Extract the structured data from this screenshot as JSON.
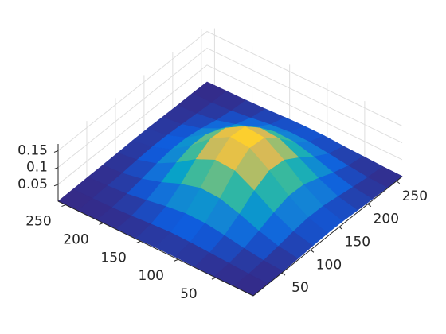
{
  "chart_data": {
    "type": "surface",
    "colormap": "parula",
    "grid": true,
    "x": [
      0,
      26,
      52,
      78,
      104,
      130,
      156,
      182,
      208,
      234,
      260
    ],
    "y": [
      0,
      26,
      52,
      78,
      104,
      130,
      156,
      182,
      208,
      234,
      260
    ],
    "z": [
      [
        0.0,
        0.001,
        0.002,
        0.004,
        0.007,
        0.009,
        0.009,
        0.006,
        0.004,
        0.002,
        0.001
      ],
      [
        0.001,
        0.002,
        0.006,
        0.013,
        0.021,
        0.027,
        0.026,
        0.019,
        0.011,
        0.005,
        0.002
      ],
      [
        0.001,
        0.005,
        0.014,
        0.03,
        0.049,
        0.063,
        0.061,
        0.045,
        0.026,
        0.011,
        0.004
      ],
      [
        0.002,
        0.008,
        0.024,
        0.052,
        0.086,
        0.11,
        0.106,
        0.078,
        0.045,
        0.019,
        0.006
      ],
      [
        0.003,
        0.011,
        0.032,
        0.07,
        0.117,
        0.149,
        0.144,
        0.106,
        0.061,
        0.026,
        0.009
      ],
      [
        0.003,
        0.012,
        0.033,
        0.073,
        0.121,
        0.154,
        0.149,
        0.11,
        0.063,
        0.027,
        0.009
      ],
      [
        0.002,
        0.009,
        0.026,
        0.057,
        0.095,
        0.121,
        0.117,
        0.086,
        0.049,
        0.021,
        0.007
      ],
      [
        0.001,
        0.005,
        0.016,
        0.034,
        0.057,
        0.072,
        0.07,
        0.052,
        0.029,
        0.013,
        0.004
      ],
      [
        0.001,
        0.002,
        0.007,
        0.016,
        0.026,
        0.033,
        0.032,
        0.024,
        0.013,
        0.006,
        0.002
      ],
      [
        0.0,
        0.001,
        0.003,
        0.005,
        0.009,
        0.012,
        0.011,
        0.008,
        0.005,
        0.002,
        0.001
      ],
      [
        0.0,
        0.0,
        0.001,
        0.001,
        0.002,
        0.003,
        0.003,
        0.002,
        0.001,
        0.001,
        0.0
      ]
    ],
    "xlim": [
      0,
      260
    ],
    "ylim": [
      0,
      260
    ],
    "zlim": [
      0,
      0.17
    ],
    "xticks": [
      50,
      100,
      150,
      200,
      250
    ],
    "yticks": [
      50,
      100,
      150,
      200,
      250
    ],
    "zticks": [
      0.05,
      0.1,
      0.15
    ]
  }
}
